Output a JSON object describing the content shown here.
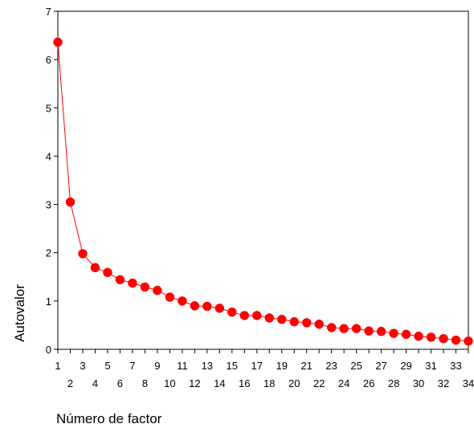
{
  "chart_data": {
    "type": "line",
    "title": "",
    "xlabel": "Número de factor",
    "ylabel": "Autovalor",
    "xlim": [
      1,
      34
    ],
    "ylim": [
      0,
      7
    ],
    "y_ticks": [
      0,
      1,
      2,
      3,
      4,
      5,
      6,
      7
    ],
    "x_ticks": [
      1,
      2,
      3,
      4,
      5,
      6,
      7,
      8,
      9,
      10,
      11,
      12,
      13,
      14,
      15,
      16,
      17,
      18,
      19,
      20,
      21,
      22,
      23,
      24,
      25,
      26,
      27,
      28,
      29,
      30,
      31,
      32,
      33,
      34
    ],
    "grid": false,
    "legend": "none",
    "series": [
      {
        "color": "#ff0000",
        "marker": "circle",
        "x": [
          1,
          2,
          3,
          4,
          5,
          6,
          7,
          8,
          9,
          10,
          11,
          12,
          13,
          14,
          15,
          16,
          17,
          18,
          19,
          20,
          21,
          22,
          23,
          24,
          25,
          26,
          27,
          28,
          29,
          30,
          31,
          32,
          33,
          34
        ],
        "values": [
          6.36,
          3.05,
          1.98,
          1.69,
          1.59,
          1.44,
          1.37,
          1.29,
          1.22,
          1.08,
          1.0,
          0.9,
          0.89,
          0.85,
          0.77,
          0.7,
          0.7,
          0.65,
          0.62,
          0.57,
          0.55,
          0.52,
          0.45,
          0.43,
          0.43,
          0.38,
          0.37,
          0.33,
          0.31,
          0.27,
          0.25,
          0.22,
          0.19,
          0.17
        ]
      }
    ]
  }
}
